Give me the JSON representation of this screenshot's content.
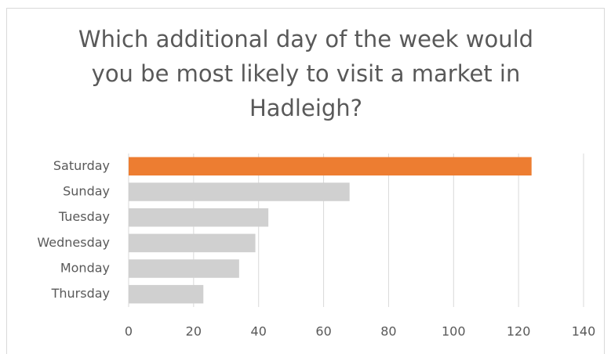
{
  "chart_data": {
    "type": "barh",
    "title": "Which additional day of the week would you be most likely to visit a market in Hadleigh?",
    "categories": [
      "Saturday",
      "Sunday",
      "Tuesday",
      "Wednesday",
      "Monday",
      "Thursday"
    ],
    "values": [
      124,
      68,
      43,
      39,
      34,
      23
    ],
    "colors": [
      "#ed7d31",
      "#d0d0d0",
      "#d0d0d0",
      "#d0d0d0",
      "#d0d0d0",
      "#d0d0d0"
    ],
    "xlim": [
      0,
      140
    ],
    "xticks": [
      0,
      20,
      40,
      60,
      80,
      100,
      120,
      140
    ],
    "grid": true
  }
}
